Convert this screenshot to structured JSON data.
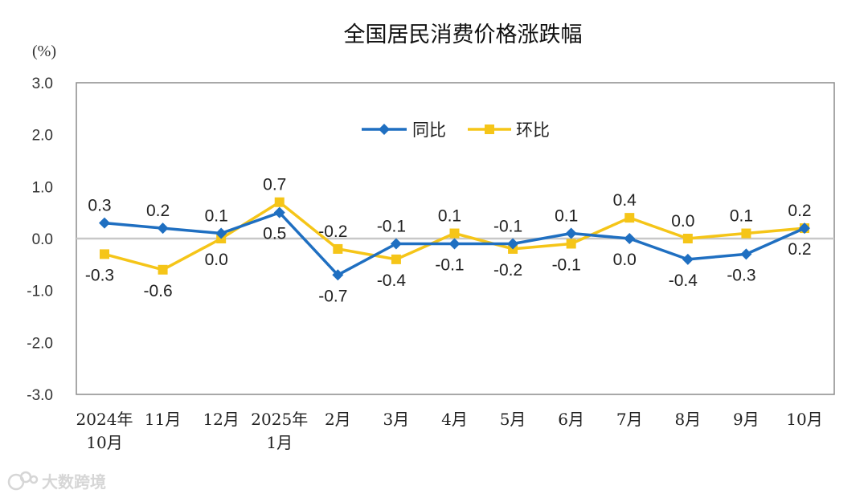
{
  "chart_data": {
    "type": "line",
    "title": "全国居民消费价格涨跌幅",
    "unit_label": "(%)",
    "ylim": [
      -3.0,
      3.0
    ],
    "yticks": [
      "3.0",
      "2.0",
      "1.0",
      "0.0",
      "-1.0",
      "-2.0",
      "-3.0"
    ],
    "categories": [
      [
        "2024年",
        "10月"
      ],
      [
        "11月"
      ],
      [
        "12月"
      ],
      [
        "2025年",
        "1月"
      ],
      [
        "2月"
      ],
      [
        "3月"
      ],
      [
        "4月"
      ],
      [
        "5月"
      ],
      [
        "6月"
      ],
      [
        "7月"
      ],
      [
        "8月"
      ],
      [
        "9月"
      ],
      [
        "10月"
      ]
    ],
    "series": [
      {
        "name": "同比",
        "color": "#1f6fc1",
        "marker": "diamond",
        "values": [
          0.3,
          0.2,
          0.1,
          0.5,
          -0.7,
          -0.1,
          -0.1,
          -0.1,
          0.1,
          0.0,
          -0.4,
          -0.3,
          0.2
        ],
        "labels": [
          "0.3",
          "0.2",
          "0.1",
          "0.5",
          "-0.7",
          "-0.1",
          "-0.1",
          "-0.1",
          "0.1",
          "0.0",
          "-0.4",
          "-0.3",
          "0.2"
        ]
      },
      {
        "name": "环比",
        "color": "#f5c518",
        "marker": "square",
        "values": [
          -0.3,
          -0.6,
          0.0,
          0.7,
          -0.2,
          -0.4,
          0.1,
          -0.2,
          -0.1,
          0.4,
          0.0,
          0.1,
          0.2
        ],
        "labels": [
          "-0.3",
          "-0.6",
          "0.0",
          "0.7",
          "-0.2",
          "-0.4",
          "0.1",
          "-0.2",
          "-0.1",
          "0.4",
          "0.0",
          "0.1",
          "0.2"
        ]
      }
    ],
    "legend": "top-center",
    "grid": false
  },
  "watermark": {
    "text": "大数跨境"
  }
}
